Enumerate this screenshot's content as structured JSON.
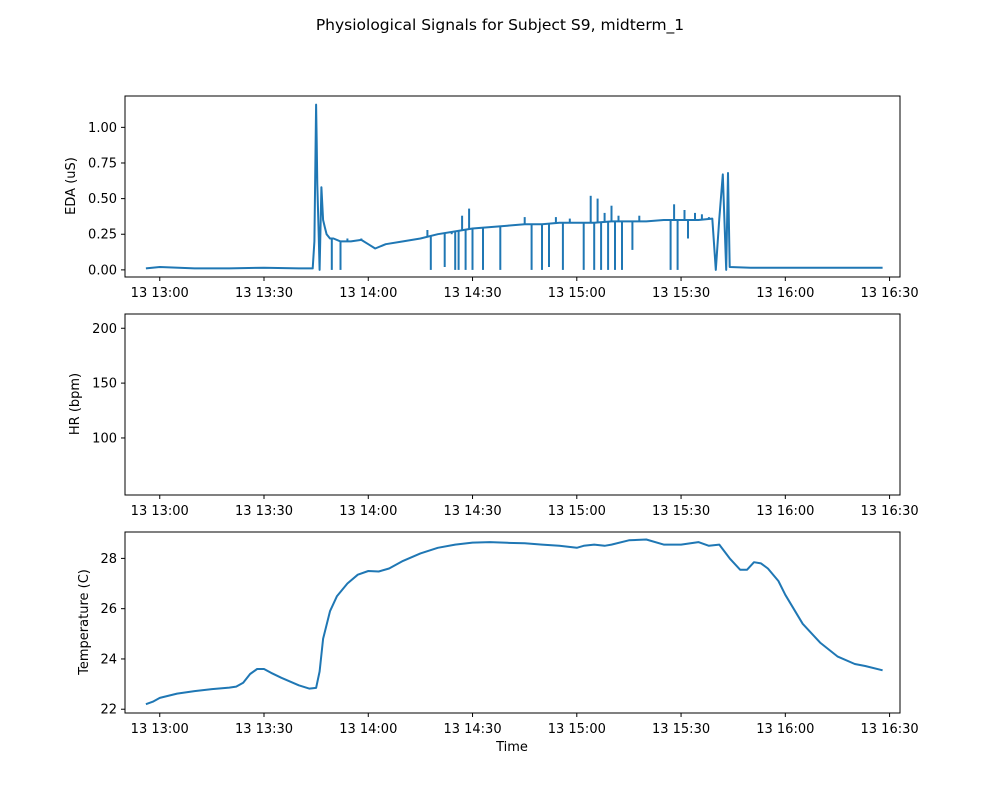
{
  "figure": {
    "title": "Physiological Signals for Subject S9, midterm_1",
    "line_color": "#1f77b4"
  },
  "chart_data": [
    {
      "type": "line",
      "title": "",
      "xlabel": "",
      "ylabel": "EDA (uS)",
      "xlim": [
        "12:50",
        "16:33"
      ],
      "ylim": [
        -0.05,
        1.22
      ],
      "x_ticks": [
        {
          "time": "13:00",
          "label": "13 13:00"
        },
        {
          "time": "13:30",
          "label": "13 13:30"
        },
        {
          "time": "14:00",
          "label": "13 14:00"
        },
        {
          "time": "14:30",
          "label": "13 14:30"
        },
        {
          "time": "15:00",
          "label": "13 15:00"
        },
        {
          "time": "15:30",
          "label": "13 15:30"
        },
        {
          "time": "16:00",
          "label": "13 16:00"
        },
        {
          "time": "16:30",
          "label": "13 16:30"
        }
      ],
      "y_ticks": [
        {
          "value": 0.0,
          "label": "0.00"
        },
        {
          "value": 0.25,
          "label": "0.25"
        },
        {
          "value": 0.5,
          "label": "0.50"
        },
        {
          "value": 0.75,
          "label": "0.75"
        },
        {
          "value": 1.0,
          "label": "1.00"
        }
      ],
      "grid": false,
      "series": [
        {
          "x": [
            "12:56",
            "13:00",
            "13:10",
            "13:20",
            "13:30",
            "13:40",
            "13:44",
            "13:44:30",
            "13:45",
            "13:45:10",
            "13:45:20",
            "13:45:40",
            "13:46",
            "13:46:30",
            "13:47",
            "13:47:30",
            "13:48",
            "13:49",
            "13:50",
            "13:52",
            "13:55",
            "13:58",
            "14:00",
            "14:02",
            "14:05",
            "14:10",
            "14:15",
            "14:20",
            "14:25",
            "14:30",
            "14:35",
            "14:40",
            "14:45",
            "14:50",
            "14:55",
            "15:00",
            "15:05",
            "15:10",
            "15:15",
            "15:20",
            "15:25",
            "15:30",
            "15:35",
            "15:39",
            "15:40",
            "15:41",
            "15:42",
            "15:43",
            "15:43:30",
            "15:44",
            "15:50",
            "16:00",
            "16:10",
            "16:20",
            "16:28"
          ],
          "y": [
            0.01,
            0.02,
            0.01,
            0.01,
            0.015,
            0.01,
            0.01,
            0.2,
            1.16,
            0.9,
            0.6,
            0.3,
            0.0,
            0.58,
            0.35,
            0.3,
            0.25,
            0.22,
            0.22,
            0.2,
            0.2,
            0.21,
            0.18,
            0.15,
            0.18,
            0.2,
            0.22,
            0.25,
            0.27,
            0.29,
            0.3,
            0.31,
            0.32,
            0.32,
            0.33,
            0.33,
            0.33,
            0.34,
            0.34,
            0.34,
            0.35,
            0.35,
            0.35,
            0.36,
            0.0,
            0.36,
            0.67,
            0.0,
            0.68,
            0.02,
            0.015,
            0.015,
            0.015,
            0.015,
            0.015
          ]
        }
      ],
      "spikes": [
        {
          "x": "13:49:30",
          "y": 0.0
        },
        {
          "x": "13:52",
          "y": 0.0
        },
        {
          "x": "13:54",
          "y": 0.22
        },
        {
          "x": "13:56",
          "y": 0.2
        },
        {
          "x": "13:58",
          "y": 0.22
        },
        {
          "x": "14:17",
          "y": 0.28
        },
        {
          "x": "14:18",
          "y": 0.0
        },
        {
          "x": "14:22",
          "y": 0.02
        },
        {
          "x": "14:24",
          "y": 0.25
        },
        {
          "x": "14:25",
          "y": 0.0
        },
        {
          "x": "14:26",
          "y": 0.0
        },
        {
          "x": "14:27",
          "y": 0.38
        },
        {
          "x": "14:28",
          "y": 0.0
        },
        {
          "x": "14:29",
          "y": 0.43
        },
        {
          "x": "14:30",
          "y": 0.0
        },
        {
          "x": "14:33",
          "y": 0.0
        },
        {
          "x": "14:38",
          "y": 0.0
        },
        {
          "x": "14:45",
          "y": 0.37
        },
        {
          "x": "14:47",
          "y": 0.0
        },
        {
          "x": "14:50",
          "y": 0.0
        },
        {
          "x": "14:52",
          "y": 0.02
        },
        {
          "x": "14:54",
          "y": 0.37
        },
        {
          "x": "14:56",
          "y": 0.0
        },
        {
          "x": "14:58",
          "y": 0.36
        },
        {
          "x": "15:02",
          "y": 0.0
        },
        {
          "x": "15:04",
          "y": 0.52
        },
        {
          "x": "15:05",
          "y": 0.0
        },
        {
          "x": "15:06",
          "y": 0.5
        },
        {
          "x": "15:07",
          "y": 0.0
        },
        {
          "x": "15:08",
          "y": 0.4
        },
        {
          "x": "15:09",
          "y": 0.0
        },
        {
          "x": "15:10",
          "y": 0.45
        },
        {
          "x": "15:11",
          "y": 0.0
        },
        {
          "x": "15:12",
          "y": 0.38
        },
        {
          "x": "15:13",
          "y": 0.0
        },
        {
          "x": "15:16",
          "y": 0.14
        },
        {
          "x": "15:18",
          "y": 0.38
        },
        {
          "x": "15:27",
          "y": 0.0
        },
        {
          "x": "15:28",
          "y": 0.46
        },
        {
          "x": "15:29",
          "y": 0.0
        },
        {
          "x": "15:31",
          "y": 0.42
        },
        {
          "x": "15:32",
          "y": 0.22
        },
        {
          "x": "15:34",
          "y": 0.4
        },
        {
          "x": "15:36",
          "y": 0.39
        },
        {
          "x": "15:38",
          "y": 0.37
        }
      ]
    },
    {
      "type": "line",
      "title": "",
      "xlabel": "",
      "ylabel": "HR (bpm)",
      "xlim": [
        "12:50",
        "16:33"
      ],
      "ylim": [
        48,
        213
      ],
      "x_ticks": [
        {
          "time": "13:00",
          "label": "13 13:00"
        },
        {
          "time": "13:30",
          "label": "13 13:30"
        },
        {
          "time": "14:00",
          "label": "13 14:00"
        },
        {
          "time": "14:30",
          "label": "13 14:30"
        },
        {
          "time": "15:00",
          "label": "13 15:00"
        },
        {
          "time": "15:30",
          "label": "13 15:30"
        },
        {
          "time": "16:00",
          "label": "13 16:00"
        },
        {
          "time": "16:30",
          "label": "13 16:30"
        }
      ],
      "y_ticks": [
        {
          "value": 100,
          "label": "100"
        },
        {
          "value": 150,
          "label": "150"
        },
        {
          "value": 200,
          "label": "200"
        }
      ],
      "grid": false,
      "series": []
    },
    {
      "type": "line",
      "title": "",
      "xlabel": "Time",
      "ylabel": "Temperature (C)",
      "xlim": [
        "12:50",
        "16:33"
      ],
      "ylim": [
        21.85,
        29.05
      ],
      "x_ticks": [
        {
          "time": "13:00",
          "label": "13 13:00"
        },
        {
          "time": "13:30",
          "label": "13 13:30"
        },
        {
          "time": "14:00",
          "label": "13 14:00"
        },
        {
          "time": "14:30",
          "label": "13 14:30"
        },
        {
          "time": "15:00",
          "label": "13 15:00"
        },
        {
          "time": "15:30",
          "label": "13 15:30"
        },
        {
          "time": "16:00",
          "label": "13 16:00"
        },
        {
          "time": "16:30",
          "label": "13 16:30"
        }
      ],
      "y_ticks": [
        {
          "value": 22,
          "label": "22"
        },
        {
          "value": 24,
          "label": "24"
        },
        {
          "value": 26,
          "label": "26"
        },
        {
          "value": 28,
          "label": "28"
        }
      ],
      "grid": false,
      "series": [
        {
          "x": [
            "12:56",
            "12:58",
            "13:00",
            "13:05",
            "13:10",
            "13:15",
            "13:20",
            "13:22",
            "13:24",
            "13:26",
            "13:28",
            "13:30",
            "13:32",
            "13:35",
            "13:40",
            "13:43",
            "13:45",
            "13:46",
            "13:47",
            "13:49",
            "13:51",
            "13:54",
            "13:57",
            "14:00",
            "14:03",
            "14:06",
            "14:10",
            "14:15",
            "14:20",
            "14:25",
            "14:30",
            "14:35",
            "14:40",
            "14:45",
            "14:50",
            "14:55",
            "15:00",
            "15:02",
            "15:05",
            "15:08",
            "15:10",
            "15:15",
            "15:20",
            "15:25",
            "15:30",
            "15:35",
            "15:38",
            "15:41",
            "15:44",
            "15:47",
            "15:49",
            "15:51",
            "15:53",
            "15:55",
            "15:58",
            "16:00",
            "16:05",
            "16:10",
            "16:15",
            "16:20",
            "16:23",
            "16:28"
          ],
          "y": [
            22.2,
            22.3,
            22.45,
            22.62,
            22.72,
            22.8,
            22.86,
            22.9,
            23.05,
            23.4,
            23.6,
            23.6,
            23.45,
            23.25,
            22.95,
            22.82,
            22.85,
            23.5,
            24.8,
            25.9,
            26.5,
            27.0,
            27.35,
            27.5,
            27.48,
            27.6,
            27.9,
            28.2,
            28.42,
            28.55,
            28.63,
            28.65,
            28.62,
            28.6,
            28.55,
            28.5,
            28.42,
            28.5,
            28.55,
            28.5,
            28.55,
            28.72,
            28.75,
            28.55,
            28.55,
            28.65,
            28.5,
            28.55,
            28.0,
            27.55,
            27.55,
            27.85,
            27.8,
            27.6,
            27.1,
            26.55,
            25.4,
            24.65,
            24.1,
            23.8,
            23.72,
            23.55
          ]
        }
      ]
    }
  ]
}
